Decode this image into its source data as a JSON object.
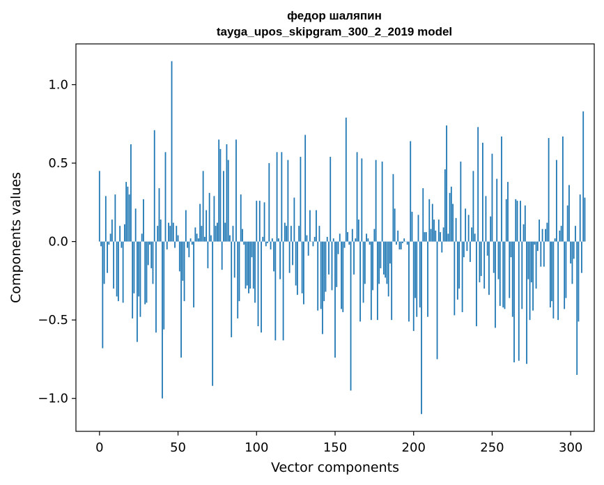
{
  "chart_data": {
    "type": "bar",
    "title_line1": "федор шаляпин",
    "title_line2": "tayga_upos_skipgram_300_2_2019 model",
    "xlabel": "Vector components",
    "ylabel": "Components values",
    "xlim": [
      -15,
      315
    ],
    "ylim": [
      -1.21,
      1.26
    ],
    "xticks": [
      0,
      50,
      100,
      150,
      200,
      250,
      300
    ],
    "yticks": [
      -1.0,
      -0.5,
      0.0,
      0.5,
      1.0
    ],
    "ytick_labels": [
      "−1.0",
      "−0.5",
      "0.0",
      "0.5",
      "1.0"
    ],
    "bar_color": "#1f77b4",
    "grid": false,
    "values": [
      0.45,
      -0.03,
      -0.68,
      -0.27,
      0.29,
      -0.2,
      -0.02,
      0.05,
      0.14,
      -0.3,
      0.3,
      -0.35,
      -0.38,
      0.1,
      -0.04,
      -0.39,
      0.11,
      0.38,
      0.35,
      0.3,
      0.62,
      -0.49,
      -0.33,
      0.21,
      -0.64,
      -0.35,
      -0.48,
      0.05,
      0.27,
      -0.4,
      -0.39,
      -0.15,
      -0.02,
      -0.17,
      -0.27,
      0.71,
      -0.58,
      0.1,
      0.34,
      0.14,
      -1.0,
      -0.56,
      0.57,
      -0.05,
      0.12,
      0.1,
      1.15,
      0.12,
      -0.04,
      0.1,
      0.04,
      -0.19,
      -0.74,
      -0.25,
      -0.38,
      0.2,
      -0.04,
      -0.1,
      0.02,
      -0.02,
      -0.42,
      0.09,
      0.05,
      0.02,
      0.24,
      0.1,
      0.45,
      0.03,
      0.2,
      -0.17,
      0.31,
      0.04,
      -0.92,
      0.29,
      0.1,
      0.12,
      0.65,
      0.59,
      -0.18,
      0.45,
      0.12,
      0.62,
      0.52,
      0.04,
      -0.61,
      0.1,
      -0.23,
      0.65,
      -0.49,
      -0.38,
      0.3,
      0.08,
      -0.02,
      -0.3,
      -0.28,
      -0.33,
      -0.3,
      -0.1,
      -0.3,
      -0.39,
      0.26,
      -0.54,
      0.26,
      -0.58,
      0.03,
      0.25,
      -0.03,
      -0.01,
      0.5,
      -0.05,
      0.02,
      -0.19,
      -0.63,
      0.57,
      0.02,
      -0.24,
      0.57,
      -0.63,
      0.12,
      0.1,
      0.52,
      -0.2,
      0.1,
      -0.15,
      0.28,
      -0.28,
      -0.34,
      0.1,
      0.54,
      -0.33,
      -0.4,
      0.68,
      0.04,
      -0.09,
      0.2,
      0.0,
      -0.03,
      0.03,
      0.2,
      -0.44,
      0.1,
      -0.43,
      -0.59,
      -0.38,
      -0.32,
      0.03,
      -0.21,
      0.54,
      -0.31,
      0.02,
      -0.74,
      -0.29,
      -0.08,
      0.05,
      -0.43,
      -0.45,
      -0.04,
      0.79,
      0.06,
      -0.02,
      -0.95,
      0.08,
      -0.21,
      0.02,
      0.57,
      0.14,
      -0.51,
      0.53,
      -0.39,
      -0.27,
      0.05,
      0.02,
      -0.02,
      -0.5,
      -0.31,
      0.08,
      0.52,
      -0.5,
      -0.27,
      -0.17,
      0.51,
      -0.21,
      -0.23,
      -0.27,
      -0.35,
      -0.14,
      -0.5,
      0.43,
      0.21,
      -0.02,
      0.07,
      -0.05,
      -0.05,
      -0.01,
      0.02,
      0.0,
      -0.02,
      -0.51,
      0.64,
      0.19,
      -0.57,
      -0.36,
      -0.48,
      0.17,
      -0.42,
      -1.1,
      0.34,
      0.06,
      0.06,
      -0.48,
      0.27,
      0.08,
      0.24,
      0.14,
      0.07,
      -0.75,
      0.14,
      0.06,
      -0.07,
      0.09,
      0.46,
      0.74,
      0.05,
      0.31,
      0.35,
      0.24,
      -0.47,
      0.15,
      -0.37,
      -0.3,
      0.51,
      -0.45,
      -0.1,
      0.21,
      -0.06,
      0.17,
      -0.13,
      0.09,
      0.45,
      0.05,
      -0.54,
      0.73,
      -0.26,
      -0.22,
      0.63,
      -0.3,
      0.29,
      -0.09,
      -0.34,
      0.16,
      0.56,
      -0.2,
      -0.55,
      0.4,
      -0.24,
      -0.41,
      0.67,
      -0.42,
      -0.43,
      0.27,
      0.38,
      -0.36,
      -0.1,
      -0.48,
      -0.77,
      0.27,
      0.26,
      -0.76,
      0.26,
      -0.43,
      0.11,
      0.23,
      -0.78,
      -0.24,
      -0.5,
      -0.26,
      -0.44,
      -0.02,
      -0.3,
      -0.06,
      0.14,
      -0.16,
      0.08,
      -0.16,
      0.08,
      0.12,
      0.66,
      -0.42,
      -0.38,
      -0.49,
      0.02,
      0.52,
      -0.5,
      0.07,
      0.1,
      0.67,
      -0.43,
      -0.36,
      0.23,
      0.36,
      -0.14,
      -0.27,
      -0.11,
      0.1,
      -0.85,
      -0.51,
      0.3,
      -0.2,
      0.83,
      0.28
    ]
  }
}
